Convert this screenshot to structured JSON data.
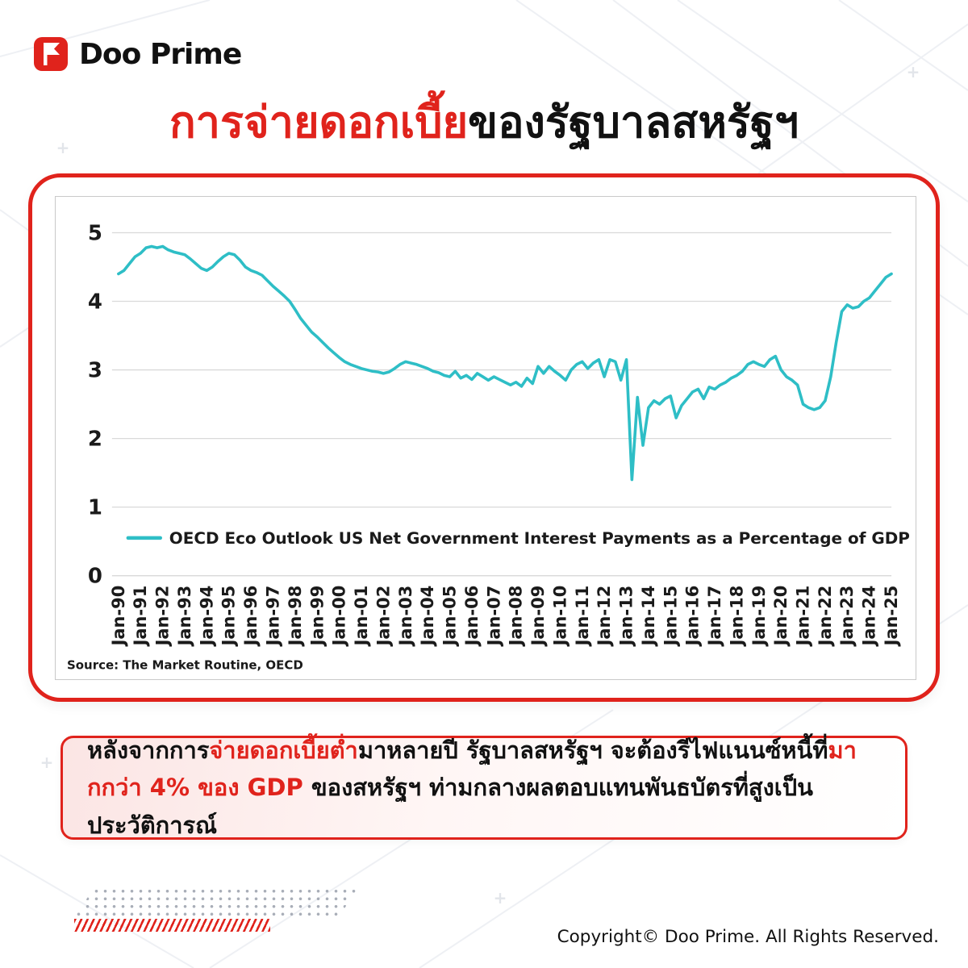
{
  "header": {
    "brand": "Doo Prime",
    "title_red": "การจ่ายดอกเบี้ย",
    "title_black": "ของรัฐบาลสหรัฐฯ"
  },
  "chart_data": {
    "type": "line",
    "series_name": "OECD Eco Outlook US Net Government Interest Payments as a Percentage of GDP",
    "line_color": "#2EBEC6",
    "grid": true,
    "legend_position": "bottom-left",
    "ylim": [
      0,
      5
    ],
    "y_ticks": [
      0,
      1,
      2,
      3,
      4,
      5
    ],
    "points_per_year": 4,
    "x_tick_labels": [
      "Jan-90",
      "Jan-91",
      "Jan-92",
      "Jan-93",
      "Jan-94",
      "Jan-95",
      "Jan-96",
      "Jan-97",
      "Jan-98",
      "Jan-99",
      "Jan-00",
      "Jan-01",
      "Jan-02",
      "Jan-03",
      "Jan-04",
      "Jan-05",
      "Jan-06",
      "Jan-07",
      "Jan-08",
      "Jan-09",
      "Jan-10",
      "Jan-11",
      "Jan-12",
      "Jan-13",
      "Jan-14",
      "Jan-15",
      "Jan-16",
      "Jan-17",
      "Jan-18",
      "Jan-19",
      "Jan-20",
      "Jan-21",
      "Jan-22",
      "Jan-23",
      "Jan-24",
      "Jan-25"
    ],
    "values": [
      4.4,
      4.45,
      4.55,
      4.65,
      4.7,
      4.78,
      4.8,
      4.78,
      4.8,
      4.75,
      4.72,
      4.7,
      4.68,
      4.62,
      4.55,
      4.48,
      4.45,
      4.5,
      4.58,
      4.65,
      4.7,
      4.68,
      4.6,
      4.5,
      4.45,
      4.42,
      4.38,
      4.3,
      4.22,
      4.15,
      4.08,
      4.0,
      3.88,
      3.75,
      3.65,
      3.55,
      3.48,
      3.4,
      3.32,
      3.25,
      3.18,
      3.12,
      3.08,
      3.05,
      3.02,
      3.0,
      2.98,
      2.97,
      2.95,
      2.97,
      3.02,
      3.08,
      3.12,
      3.1,
      3.08,
      3.05,
      3.02,
      2.98,
      2.96,
      2.92,
      2.9,
      2.98,
      2.88,
      2.92,
      2.86,
      2.95,
      2.9,
      2.85,
      2.9,
      2.86,
      2.82,
      2.78,
      2.82,
      2.76,
      2.88,
      2.8,
      3.05,
      2.95,
      3.05,
      2.98,
      2.92,
      2.85,
      3.0,
      3.08,
      3.12,
      3.02,
      3.1,
      3.15,
      2.9,
      3.15,
      3.12,
      2.85,
      3.15,
      1.4,
      2.6,
      1.9,
      2.45,
      2.55,
      2.5,
      2.58,
      2.62,
      2.3,
      2.48,
      2.58,
      2.68,
      2.72,
      2.58,
      2.75,
      2.72,
      2.78,
      2.82,
      2.88,
      2.92,
      2.98,
      3.08,
      3.12,
      3.08,
      3.05,
      3.15,
      3.2,
      3.0,
      2.9,
      2.85,
      2.78,
      2.5,
      2.45,
      2.42,
      2.45,
      2.55,
      2.9,
      3.4,
      3.85,
      3.95,
      3.9,
      3.92,
      4.0,
      4.05,
      4.15,
      4.25,
      4.35,
      4.4
    ],
    "source": "Source: The Market Routine, OECD"
  },
  "callout": {
    "segments": [
      {
        "text": "หลังจากการ",
        "color": "dark"
      },
      {
        "text": "จ่ายดอกเบี้ยต่ำ",
        "color": "red"
      },
      {
        "text": "มาหลายปี  รัฐบาลสหรัฐฯ  จะต้องรีไฟแนนซ์หนี้ที่",
        "color": "dark"
      },
      {
        "text": "มากกว่า  4% ของ  GDP ",
        "color": "red"
      },
      {
        "text": " ของสหรัฐฯ  ท่ามกลางผลตอบแทนพันธบัตรที่สูงเป็นประวัติการณ์",
        "color": "dark"
      }
    ]
  },
  "footer": {
    "copyright": "Copyright© Doo Prime. All Rights Reserved."
  },
  "colors": {
    "brand_red": "#E0231C",
    "line_teal": "#2EBEC6",
    "text_dark": "#141414",
    "gridline": "#D9D9D9"
  }
}
